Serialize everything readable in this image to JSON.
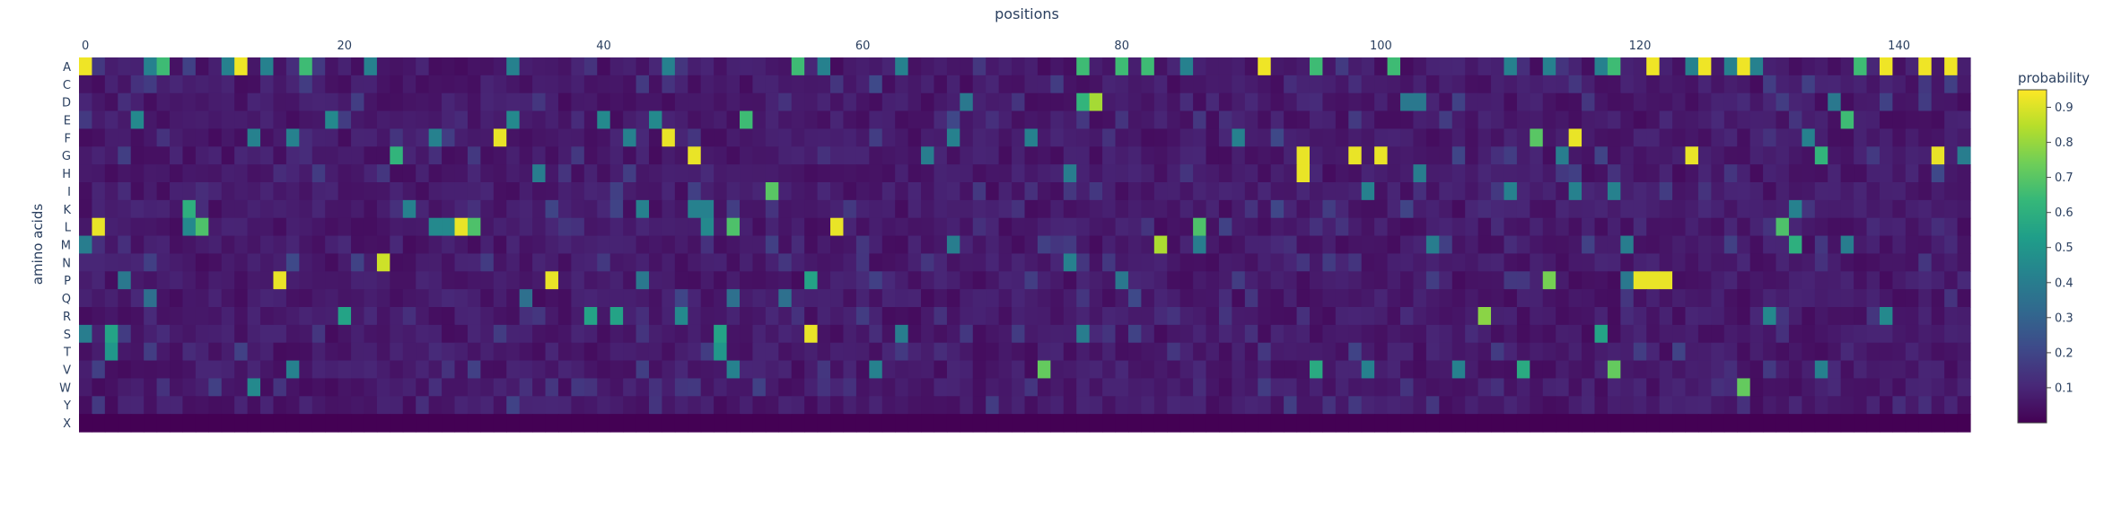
{
  "chart_data": {
    "type": "heatmap",
    "title": "",
    "xlabel": "positions",
    "ylabel": "amino acids",
    "x_range": [
      0,
      145
    ],
    "x_ticks": [
      0,
      20,
      40,
      60,
      80,
      100,
      120,
      140
    ],
    "y_categories": [
      "A",
      "C",
      "D",
      "E",
      "F",
      "G",
      "H",
      "I",
      "K",
      "L",
      "M",
      "N",
      "P",
      "Q",
      "R",
      "S",
      "T",
      "V",
      "W",
      "Y",
      "X"
    ],
    "colorbar": {
      "title": "probability",
      "range": [
        0,
        0.95
      ],
      "ticks": [
        "0.1",
        "0.2",
        "0.3",
        "0.4",
        "0.5",
        "0.6",
        "0.7",
        "0.8",
        "0.9"
      ],
      "tick_values": [
        0.1,
        0.2,
        0.3,
        0.4,
        0.5,
        0.6,
        0.7,
        0.8,
        0.9
      ]
    },
    "colorscale": [
      "#440154",
      "#482878",
      "#3e4989",
      "#31688e",
      "#26828e",
      "#1f9e89",
      "#35b779",
      "#6ece58",
      "#b5de2b",
      "#fde725"
    ],
    "background_level": 0.03,
    "highlights": [
      {
        "residue": "A",
        "positions": [
          0,
          12,
          91,
          121,
          125,
          128,
          139,
          142,
          144
        ],
        "value": 0.93
      },
      {
        "residue": "A",
        "positions": [
          6,
          17,
          55,
          77,
          80,
          82,
          95,
          101,
          118,
          137
        ],
        "value": 0.65
      },
      {
        "residue": "A",
        "positions": [
          5,
          11,
          14,
          22,
          33,
          45,
          57,
          63,
          85,
          110,
          113,
          117,
          124,
          127,
          129
        ],
        "value": 0.42
      },
      {
        "residue": "D",
        "positions": [
          78
        ],
        "value": 0.82
      },
      {
        "residue": "D",
        "positions": [
          77
        ],
        "value": 0.62
      },
      {
        "residue": "D",
        "positions": [
          68,
          102,
          103,
          135
        ],
        "value": 0.38
      },
      {
        "residue": "E",
        "positions": [
          51,
          136
        ],
        "value": 0.65
      },
      {
        "residue": "E",
        "positions": [
          4,
          19,
          33,
          40,
          44
        ],
        "value": 0.45
      },
      {
        "residue": "F",
        "positions": [
          32,
          45,
          115
        ],
        "value": 0.92
      },
      {
        "residue": "F",
        "positions": [
          112
        ],
        "value": 0.7
      },
      {
        "residue": "F",
        "positions": [
          13,
          16,
          27,
          42,
          67,
          73,
          89,
          133
        ],
        "value": 0.42
      },
      {
        "residue": "G",
        "positions": [
          47,
          94,
          98,
          100,
          124,
          143
        ],
        "value": 0.92
      },
      {
        "residue": "G",
        "positions": [
          24,
          134
        ],
        "value": 0.62
      },
      {
        "residue": "G",
        "positions": [
          65,
          114,
          145
        ],
        "value": 0.4
      },
      {
        "residue": "H",
        "positions": [
          94
        ],
        "value": 0.92
      },
      {
        "residue": "H",
        "positions": [
          35,
          76,
          103
        ],
        "value": 0.4
      },
      {
        "residue": "I",
        "positions": [
          53
        ],
        "value": 0.7
      },
      {
        "residue": "I",
        "positions": [
          99,
          110,
          115,
          118
        ],
        "value": 0.42
      },
      {
        "residue": "K",
        "positions": [
          8
        ],
        "value": 0.6
      },
      {
        "residue": "K",
        "positions": [
          25,
          43,
          47,
          48,
          132
        ],
        "value": 0.42
      },
      {
        "residue": "L",
        "positions": [
          1,
          29,
          58
        ],
        "value": 0.92
      },
      {
        "residue": "L",
        "positions": [
          9,
          30,
          50,
          86,
          131
        ],
        "value": 0.68
      },
      {
        "residue": "L",
        "positions": [
          8,
          27,
          28,
          48
        ],
        "value": 0.45
      },
      {
        "residue": "M",
        "positions": [
          83
        ],
        "value": 0.83
      },
      {
        "residue": "M",
        "positions": [
          132
        ],
        "value": 0.6
      },
      {
        "residue": "M",
        "positions": [
          0,
          67,
          86,
          104,
          119,
          136
        ],
        "value": 0.4
      },
      {
        "residue": "N",
        "positions": [
          23
        ],
        "value": 0.88
      },
      {
        "residue": "N",
        "positions": [
          76
        ],
        "value": 0.42
      },
      {
        "residue": "P",
        "positions": [
          15,
          36,
          120,
          121,
          122
        ],
        "value": 0.92
      },
      {
        "residue": "P",
        "positions": [
          113
        ],
        "value": 0.75
      },
      {
        "residue": "P",
        "positions": [
          56
        ],
        "value": 0.55
      },
      {
        "residue": "P",
        "positions": [
          3,
          43,
          80,
          119
        ],
        "value": 0.38
      },
      {
        "residue": "Q",
        "positions": [
          5,
          34,
          50,
          54
        ],
        "value": 0.35
      },
      {
        "residue": "R",
        "positions": [
          108
        ],
        "value": 0.78
      },
      {
        "residue": "R",
        "positions": [
          20,
          39,
          41
        ],
        "value": 0.55
      },
      {
        "residue": "R",
        "positions": [
          46,
          130,
          139
        ],
        "value": 0.45
      },
      {
        "residue": "S",
        "positions": [
          56
        ],
        "value": 0.92
      },
      {
        "residue": "S",
        "positions": [
          2,
          49,
          117
        ],
        "value": 0.55
      },
      {
        "residue": "S",
        "positions": [
          0,
          63,
          77
        ],
        "value": 0.4
      },
      {
        "residue": "T",
        "positions": [
          2,
          49
        ],
        "value": 0.5
      },
      {
        "residue": "V",
        "positions": [
          74,
          118
        ],
        "value": 0.72
      },
      {
        "residue": "V",
        "positions": [
          95,
          111
        ],
        "value": 0.58
      },
      {
        "residue": "V",
        "positions": [
          16,
          50,
          61,
          99,
          106,
          134
        ],
        "value": 0.42
      },
      {
        "residue": "W",
        "positions": [
          128
        ],
        "value": 0.72
      },
      {
        "residue": "W",
        "positions": [
          13
        ],
        "value": 0.45
      },
      {
        "residue": "X",
        "positions": [],
        "value": 0
      }
    ]
  }
}
